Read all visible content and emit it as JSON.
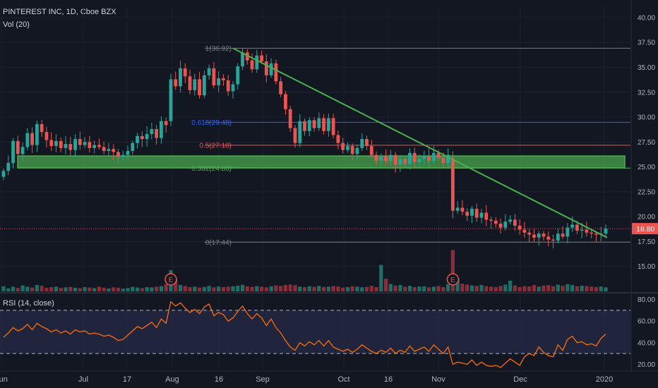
{
  "header": {
    "symbol_line": "PINTEREST INC, 1D, Cboe BZX",
    "volume_label": "Vol (20)",
    "rsi_label": "RSI (14, close)"
  },
  "colors": {
    "background": "#131722",
    "up": "#26a69a",
    "down": "#ef5350",
    "vol_up": "#1e6f66",
    "vol_down": "#8a2e3b",
    "trendline": "#4caf50",
    "zone_fill": "#4caf50",
    "rsi_line": "#ff6d00",
    "rsi_band": "#2a2e50",
    "price_line": "#ef5350",
    "fib_1": "#787b86",
    "fib_0618": "#2962ff",
    "fib_05": "#ef5350",
    "fib_0382": "#4caf50",
    "fib_0": "#787b86"
  },
  "chart_data": {
    "type": "candlestick",
    "price_axis": {
      "ticks": [
        "40.00",
        "37.50",
        "35.00",
        "32.50",
        "30.00",
        "27.50",
        "25.00",
        "22.50",
        "20.00",
        "17.50",
        "15.00"
      ],
      "range": [
        12.5,
        41.2
      ]
    },
    "rsi_axis": {
      "ticks": [
        "80.00",
        "60.00",
        "40.00",
        "20.00"
      ],
      "range": [
        15,
        85
      ],
      "upper_band": 70,
      "lower_band": 30
    },
    "x_labels": [
      "Jun",
      "Jul",
      "17",
      "Aug",
      "16",
      "Sep",
      "Oct",
      "16",
      "Nov",
      "Dec",
      "2020"
    ],
    "current_price_label": "18.80",
    "current_price": 18.8,
    "fib_levels": [
      {
        "label": "1(36.92)",
        "value": 36.92
      },
      {
        "label": "0.618(29.48)",
        "value": 29.48
      },
      {
        "label": "0.5(27.18)",
        "value": 27.18
      },
      {
        "label": "0.382(24.88)",
        "value": 24.88
      },
      {
        "label": "0(17.44)",
        "value": 17.44
      }
    ],
    "zone": {
      "low": 24.9,
      "high": 26.1
    },
    "trendline": {
      "from_price": 36.92,
      "to_price": 17.9
    },
    "earnings_markers": [
      "E",
      "E"
    ],
    "closes": [
      24.6,
      25.4,
      27.6,
      26.3,
      27.0,
      28.4,
      27.2,
      29.3,
      28.5,
      27.7,
      27.1,
      27.6,
      26.9,
      27.3,
      26.7,
      27.8,
      27.2,
      27.5,
      26.9,
      27.2,
      27.0,
      26.6,
      26.8,
      26.5,
      26.0,
      26.2,
      26.6,
      27.4,
      28.1,
      27.8,
      28.3,
      28.8,
      27.9,
      29.6,
      29.2,
      33.8,
      33.1,
      34.9,
      34.1,
      32.7,
      33.8,
      32.2,
      34.2,
      34.9,
      33.2,
      33.9,
      33.7,
      32.6,
      33.3,
      35.1,
      36.5,
      35.7,
      34.8,
      36.2,
      35.6,
      34.2,
      35.4,
      33.6,
      32.3,
      30.8,
      28.9,
      27.4,
      29.6,
      28.6,
      29.7,
      28.9,
      29.9,
      28.6,
      29.9,
      28.2,
      27.4,
      26.7,
      27.1,
      26.3,
      26.9,
      27.8,
      27.1,
      26.2,
      25.6,
      26.1,
      25.6,
      26.2,
      25.2,
      25.8,
      25.3,
      26.4,
      25.5,
      25.8,
      26.1,
      25.6,
      26.4,
      25.9,
      25.4,
      26.2,
      20.6,
      20.9,
      20.5,
      20.1,
      20.8,
      19.9,
      20.4,
      19.7,
      19.6,
      19.3,
      18.9,
      19.5,
      19.7,
      19.1,
      18.7,
      18.4,
      18.2,
      17.9,
      18.3,
      18.0,
      17.7,
      17.6,
      18.3,
      18.0,
      18.9,
      19.2,
      18.6,
      18.7,
      18.4,
      18.3,
      18.2,
      18.3,
      18.8
    ],
    "volumes": [
      0.24,
      0.14,
      0.22,
      0.16,
      0.28,
      0.22,
      0.18,
      0.3,
      0.26,
      0.17,
      0.2,
      0.22,
      0.16,
      0.19,
      0.21,
      0.17,
      0.15,
      0.2,
      0.18,
      0.15,
      0.22,
      0.17,
      0.14,
      0.19,
      0.17,
      0.13,
      0.16,
      0.21,
      0.18,
      0.15,
      0.2,
      0.19,
      0.22,
      0.25,
      0.34,
      1.0,
      0.55,
      0.3,
      0.25,
      0.2,
      0.22,
      0.18,
      0.21,
      0.26,
      0.19,
      0.23,
      0.2,
      0.22,
      0.24,
      0.27,
      0.31,
      0.24,
      0.21,
      0.25,
      0.22,
      0.19,
      0.24,
      0.28,
      0.26,
      0.3,
      0.32,
      0.29,
      0.22,
      0.2,
      0.24,
      0.21,
      0.26,
      0.2,
      0.22,
      0.25,
      0.23,
      0.18,
      0.2,
      0.24,
      0.22,
      0.19,
      0.21,
      0.26,
      0.2,
      1.25,
      0.6,
      0.35,
      0.27,
      0.3,
      0.22,
      0.26,
      0.2,
      0.23,
      0.24,
      0.19,
      0.22,
      0.25,
      0.2,
      0.34,
      1.95,
      0.6,
      0.36,
      0.32,
      0.28,
      0.26,
      0.3,
      0.24,
      0.22,
      0.2,
      0.26,
      0.32,
      0.5,
      0.28,
      0.2,
      0.25,
      0.23,
      0.3,
      0.22,
      0.27,
      0.29,
      0.24,
      0.32,
      0.26,
      0.34,
      0.3,
      0.24,
      0.27,
      0.25,
      0.22,
      0.2,
      0.23,
      0.19
    ],
    "rsi": [
      45,
      49,
      54,
      51,
      53,
      57,
      52,
      58,
      55,
      53,
      50,
      52,
      49,
      51,
      48,
      52,
      50,
      51,
      48,
      49,
      48,
      46,
      47,
      45,
      42,
      43,
      47,
      51,
      55,
      53,
      56,
      59,
      54,
      62,
      58,
      78,
      74,
      77,
      72,
      68,
      71,
      67,
      73,
      76,
      65,
      68,
      66,
      60,
      63,
      69,
      74,
      67,
      62,
      67,
      63,
      56,
      62,
      54,
      49,
      42,
      36,
      33,
      40,
      37,
      41,
      38,
      42,
      37,
      42,
      36,
      34,
      32,
      34,
      31,
      34,
      38,
      35,
      32,
      30,
      33,
      31,
      35,
      30,
      33,
      31,
      37,
      32,
      34,
      36,
      32,
      38,
      34,
      30,
      36,
      20,
      22,
      21,
      20,
      24,
      19,
      22,
      19,
      18,
      19,
      17,
      21,
      25,
      22,
      19,
      27,
      30,
      28,
      36,
      31,
      28,
      27,
      38,
      33,
      43,
      46,
      40,
      41,
      38,
      39,
      37,
      44,
      48
    ],
    "event_a_index": 35,
    "event_b_index": 94
  }
}
